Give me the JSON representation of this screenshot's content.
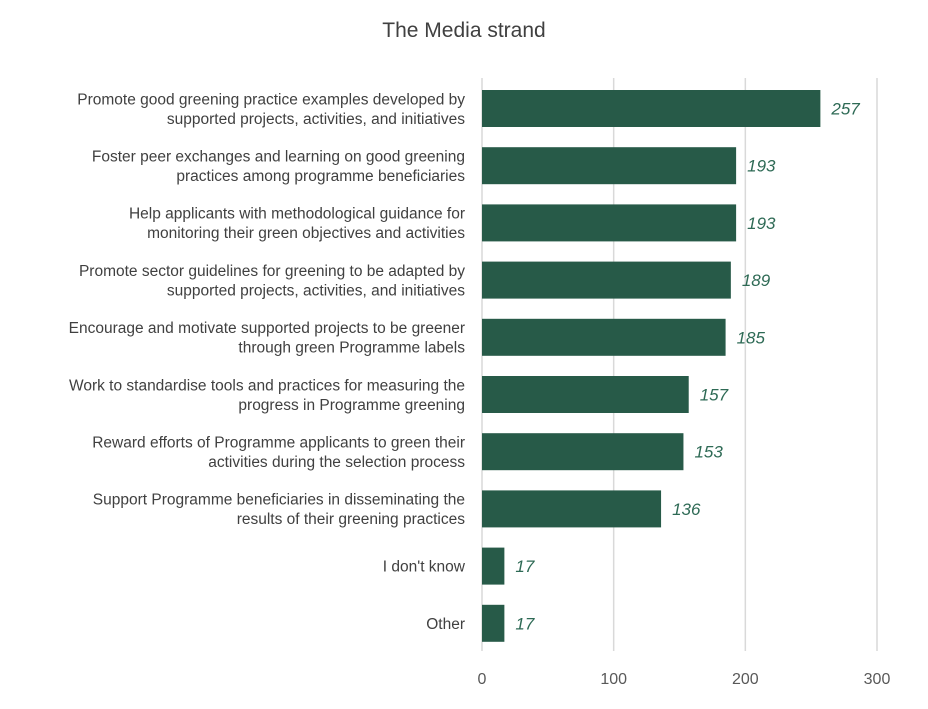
{
  "chart_data": {
    "type": "bar",
    "orientation": "horizontal",
    "title": "The Media strand",
    "categories": [
      [
        "Promote good greening practice examples developed by",
        "supported projects, activities, and initiatives"
      ],
      [
        "Foster peer exchanges and learning on good greening",
        "practices among programme beneficiaries"
      ],
      [
        "Help applicants with methodological guidance for",
        "monitoring their green objectives and activities"
      ],
      [
        "Promote sector guidelines for greening to be adapted by",
        "supported projects, activities, and initiatives"
      ],
      [
        "Encourage and motivate supported projects to be greener",
        "through green Programme labels"
      ],
      [
        "Work to standardise tools and practices for measuring the",
        "progress in Programme greening"
      ],
      [
        "Reward efforts of Programme applicants to green their",
        "activities during the selection process"
      ],
      [
        "Support Programme beneficiaries in disseminating the",
        "results of their greening practices"
      ],
      [
        "I don't know"
      ],
      [
        "Other"
      ]
    ],
    "values": [
      257,
      193,
      193,
      189,
      185,
      157,
      153,
      136,
      17,
      17
    ],
    "xlim": [
      0,
      300
    ],
    "xticks": [
      0,
      100,
      200,
      300
    ],
    "grid": true,
    "bar_color": "#275a48",
    "label_color": "#2e6a55",
    "xlabel": "",
    "ylabel": ""
  }
}
